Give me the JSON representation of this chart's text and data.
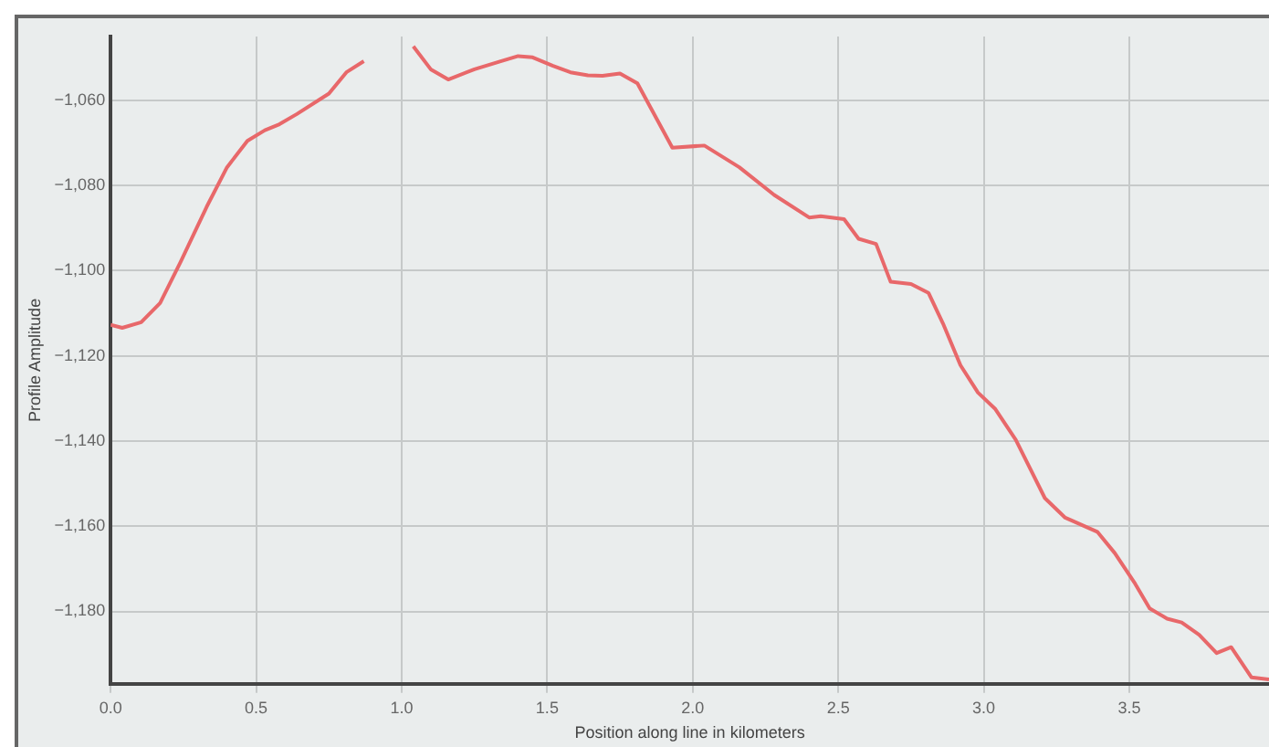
{
  "chart_data": {
    "type": "line",
    "xlabel": "Position along line in kilometers",
    "ylabel": "Profile Amplitude",
    "x": [
      0,
      0.04,
      0.105,
      0.17,
      0.24,
      0.33,
      0.4,
      0.47,
      0.53,
      0.58,
      0.64,
      0.75,
      0.81,
      0.87,
      0.93,
      0.99,
      1.04,
      1.1,
      1.16,
      1.25,
      1.34,
      1.4,
      1.45,
      1.52,
      1.58,
      1.64,
      1.69,
      1.75,
      1.81,
      1.93,
      2.04,
      2.16,
      2.28,
      2.4,
      2.44,
      2.52,
      2.57,
      2.63,
      2.68,
      2.75,
      2.81,
      2.86,
      2.92,
      2.98,
      3.04,
      3.11,
      3.21,
      3.28,
      3.39,
      3.45,
      3.52,
      3.57,
      3.63,
      3.68,
      3.74,
      3.8,
      3.85,
      3.92,
      3.98
    ],
    "series": [
      {
        "color": "#e8686a",
        "values": [
          -1112.7,
          -1113.4,
          -1112.1,
          -1107.6,
          -1098,
          -1085,
          -1075.7,
          -1069.5,
          -1067,
          -1065.6,
          -1063.2,
          -1058.4,
          -1053.4,
          -1050.8,
          null,
          null,
          -1047.3,
          -1052.7,
          -1055.1,
          -1052.7,
          -1050.8,
          -1049.6,
          -1049.9,
          -1051.9,
          -1053.4,
          -1054.1,
          -1054.2,
          -1053.7,
          -1056,
          -1071.1,
          -1070.6,
          -1075.7,
          -1082.2,
          -1087.5,
          -1087.2,
          -1087.9,
          -1092.5,
          -1093.7,
          -1102.6,
          -1103.1,
          -1105.2,
          -1112.4,
          -1122.2,
          -1128.6,
          -1132.5,
          -1139.7,
          -1153.4,
          -1158,
          -1161.3,
          -1166.3,
          -1173.5,
          -1179.3,
          -1181.7,
          -1182.6,
          -1185.5,
          -1189.8,
          -1188.4,
          -1195.5,
          -1196
        ]
      }
    ],
    "xlim": [
      0,
      3.98
    ],
    "xticks": [
      {
        "value": 0,
        "label": "0.0"
      },
      {
        "value": 0.5,
        "label": "0.5"
      },
      {
        "value": 1,
        "label": "1.0"
      },
      {
        "value": 1.5,
        "label": "1.5"
      },
      {
        "value": 2,
        "label": "2.0"
      },
      {
        "value": 2.5,
        "label": "2.5"
      },
      {
        "value": 3,
        "label": "3.0"
      },
      {
        "value": 3.5,
        "label": "3.5"
      }
    ],
    "ylim": [
      -1197,
      -1045
    ],
    "yticks": [
      {
        "value": -1180,
        "label": "−1,180"
      },
      {
        "value": -1160,
        "label": "−1,160"
      },
      {
        "value": -1140,
        "label": "−1,140"
      },
      {
        "value": -1120,
        "label": "−1,120"
      },
      {
        "value": -1100,
        "label": "−1,100"
      },
      {
        "value": -1080,
        "label": "−1,080"
      },
      {
        "value": -1060,
        "label": "−1,060"
      }
    ],
    "grid": true,
    "legend": false,
    "marker": "none",
    "line_style": "solid"
  }
}
